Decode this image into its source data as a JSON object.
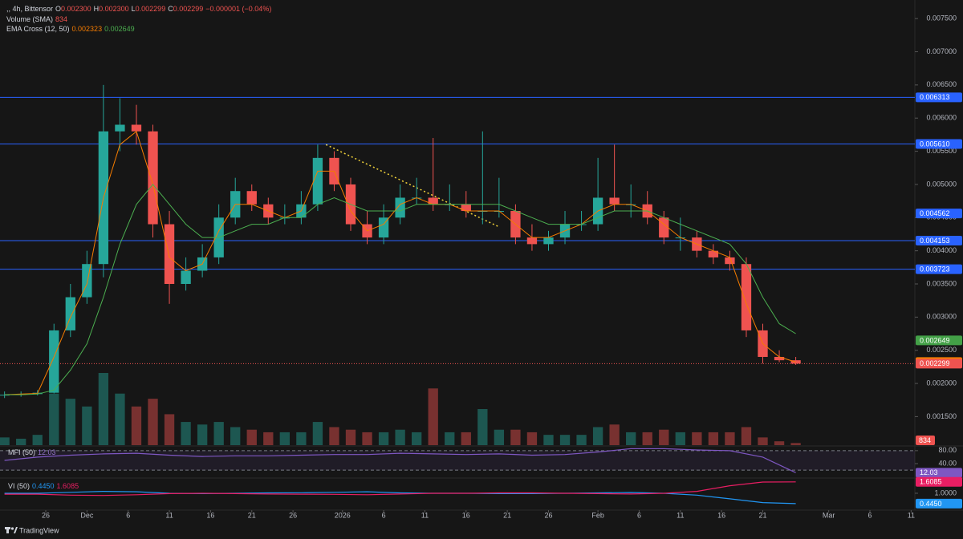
{
  "header": {
    "symbol": ",, 4h, Bittensor",
    "ohlc": [
      {
        "key": "O",
        "value": "0.002300"
      },
      {
        "key": "H",
        "value": "0.002300"
      },
      {
        "key": "L",
        "value": "0.002299"
      },
      {
        "key": "C",
        "value": "0.002299"
      }
    ],
    "change": "−0.000001 (−0.04%)"
  },
  "footer": {
    "brand": "TradingView"
  },
  "chart_data": [
    {
      "type": "candlestick",
      "x": [
        -5,
        -3,
        -1,
        1,
        3,
        5,
        7,
        9,
        11,
        13,
        15,
        17,
        19,
        21,
        23,
        25,
        27,
        29,
        31,
        33,
        35,
        37,
        39,
        41,
        43,
        45,
        47,
        49,
        51,
        53,
        55,
        57,
        59,
        61,
        63,
        65,
        67,
        69,
        71,
        73,
        75,
        77,
        79,
        81,
        83,
        85,
        87,
        89,
        91
      ],
      "open": [
        0.00182,
        0.00183,
        0.00184,
        0.00186,
        0.0028,
        0.0033,
        0.0038,
        0.0058,
        0.0059,
        0.0058,
        0.0044,
        0.0035,
        0.0037,
        0.0039,
        0.0045,
        0.0049,
        0.0047,
        0.0045,
        0.0045,
        0.0047,
        0.0054,
        0.005,
        0.0044,
        0.0042,
        0.0045,
        0.0048,
        0.0048,
        0.0047,
        0.0047,
        0.0046,
        0.0046,
        0.0046,
        0.0042,
        0.0041,
        0.0042,
        0.0044,
        0.0044,
        0.0048,
        0.0047,
        0.0047,
        0.0045,
        0.0042,
        0.0042,
        0.004,
        0.0039,
        0.0038,
        0.0028,
        0.0024,
        0.00235
      ],
      "high": [
        0.00188,
        0.00188,
        0.0019,
        0.0029,
        0.0035,
        0.004,
        0.0065,
        0.0063,
        0.0062,
        0.0059,
        0.0046,
        0.0039,
        0.0041,
        0.0047,
        0.0051,
        0.005,
        0.0048,
        0.0047,
        0.0049,
        0.0056,
        0.0055,
        0.0051,
        0.0046,
        0.0047,
        0.005,
        0.0051,
        0.0057,
        0.005,
        0.0049,
        0.0058,
        0.0051,
        0.0047,
        0.0044,
        0.0043,
        0.0046,
        0.0046,
        0.0054,
        0.0056,
        0.005,
        0.0049,
        0.0046,
        0.0045,
        0.0043,
        0.0041,
        0.004,
        0.0039,
        0.0029,
        0.0025,
        0.0024
      ],
      "low": [
        0.00178,
        0.0018,
        0.00182,
        0.00185,
        0.0027,
        0.0032,
        0.0036,
        0.0055,
        0.0056,
        0.0042,
        0.0032,
        0.0034,
        0.0036,
        0.0038,
        0.0044,
        0.0046,
        0.0044,
        0.0044,
        0.0044,
        0.0046,
        0.0049,
        0.0043,
        0.0041,
        0.0041,
        0.0044,
        0.0047,
        0.0046,
        0.0046,
        0.0045,
        0.0044,
        0.0045,
        0.0041,
        0.004,
        0.004,
        0.0041,
        0.0043,
        0.0043,
        0.0046,
        0.0045,
        0.0044,
        0.0041,
        0.004,
        0.0039,
        0.0038,
        0.0037,
        0.0027,
        0.0023,
        0.00232,
        0.00228
      ],
      "close": [
        0.00183,
        0.00184,
        0.00186,
        0.0028,
        0.0033,
        0.0038,
        0.0058,
        0.0059,
        0.0058,
        0.0044,
        0.0035,
        0.0037,
        0.0039,
        0.0045,
        0.0049,
        0.0047,
        0.0045,
        0.0045,
        0.0047,
        0.0054,
        0.005,
        0.0044,
        0.0042,
        0.0045,
        0.0048,
        0.0048,
        0.0047,
        0.0047,
        0.0046,
        0.0046,
        0.0046,
        0.0042,
        0.0041,
        0.0042,
        0.0044,
        0.0044,
        0.0048,
        0.0047,
        0.0047,
        0.0045,
        0.0042,
        0.0042,
        0.004,
        0.0039,
        0.0038,
        0.0028,
        0.0024,
        0.00235,
        0.002299
      ],
      "colors": {
        "up": "#26a69a",
        "down": "#ef5350"
      },
      "series": [
        {
          "color": "#f57c00",
          "values": [
            0.00183,
            0.00184,
            0.00185,
            0.0024,
            0.003,
            0.0035,
            0.0048,
            0.0056,
            0.0058,
            0.005,
            0.0039,
            0.0037,
            0.0038,
            0.0043,
            0.0047,
            0.0047,
            0.0046,
            0.0045,
            0.0046,
            0.0052,
            0.0052,
            0.0046,
            0.0043,
            0.0044,
            0.0047,
            0.0048,
            0.0047,
            0.0047,
            0.0046,
            0.0046,
            0.0046,
            0.0044,
            0.0042,
            0.0042,
            0.0043,
            0.0044,
            0.0046,
            0.0047,
            0.0047,
            0.0046,
            0.0044,
            0.0042,
            0.0041,
            0.004,
            0.0039,
            0.0032,
            0.0026,
            0.0024,
            0.002323
          ]
        },
        {
          "color": "#4caf50",
          "values": [
            0.00183,
            0.00183,
            0.00184,
            0.0019,
            0.0022,
            0.0026,
            0.0033,
            0.0041,
            0.0047,
            0.005,
            0.0047,
            0.0044,
            0.0042,
            0.0042,
            0.0043,
            0.0044,
            0.0044,
            0.0045,
            0.0045,
            0.0047,
            0.0048,
            0.0047,
            0.0046,
            0.0046,
            0.0046,
            0.0047,
            0.0047,
            0.0047,
            0.0047,
            0.0047,
            0.0047,
            0.0046,
            0.0045,
            0.0044,
            0.0044,
            0.0044,
            0.0045,
            0.0046,
            0.0046,
            0.0046,
            0.0045,
            0.0044,
            0.0043,
            0.0042,
            0.0041,
            0.0038,
            0.0033,
            0.0029,
            0.00275
          ]
        }
      ],
      "ema_legend": {
        "name": "EMA Cross (12, 50)"
      },
      "volume": {
        "name": "Volume (SMA)",
        "last_label": "834",
        "values": [
          3000,
          2500,
          4000,
          20000,
          18000,
          15000,
          28000,
          20000,
          15000,
          18000,
          12000,
          9000,
          8000,
          9000,
          7000,
          6000,
          5000,
          5000,
          5000,
          9000,
          7000,
          6000,
          5000,
          5000,
          6000,
          5000,
          22000,
          5000,
          5000,
          14000,
          6000,
          6000,
          5000,
          4000,
          4000,
          4000,
          7000,
          8000,
          5000,
          5000,
          6000,
          5000,
          5000,
          5000,
          5000,
          7000,
          3000,
          1500,
          834
        ]
      },
      "levels": [
        {
          "value": 0.006313,
          "label": "0.006313"
        },
        {
          "value": 0.00561,
          "label": "0.005610"
        },
        {
          "value": 0.004153,
          "label": "0.004153"
        },
        {
          "value": 0.003723,
          "label": "0.003723"
        }
      ],
      "level_color": "#2962ff",
      "price_labels": [
        {
          "value": 0.004562,
          "label": "0.004562",
          "color": "#2962ff"
        },
        {
          "value": 0.002649,
          "label": "0.002649",
          "color": "#43a047"
        },
        {
          "value": 0.002323,
          "label": "0.002323",
          "color": "#f57c00"
        }
      ],
      "last_price": {
        "value": 0.002299,
        "label": "0.002299",
        "color": "#ef5350"
      },
      "trendline": {
        "x": [
          34,
          55
        ],
        "y": [
          0.0056,
          0.00436
        ],
        "color": "#f2d33a"
      },
      "xlim": [
        -5.55,
        105.45
      ],
      "ylim": [
        0.00107,
        0.00778
      ],
      "yticks": [
        {
          "value": 0.0075,
          "label": "0.007500"
        },
        {
          "value": 0.007,
          "label": "0.007000"
        },
        {
          "value": 0.0065,
          "label": "0.006500"
        },
        {
          "value": 0.006,
          "label": "0.006000"
        },
        {
          "value": 0.0055,
          "label": "0.005500"
        },
        {
          "value": 0.005,
          "label": "0.005000"
        },
        {
          "value": 0.0045,
          "label": "0.004500"
        },
        {
          "value": 0.004,
          "label": "0.004000"
        },
        {
          "value": 0.0035,
          "label": "0.003500"
        },
        {
          "value": 0.003,
          "label": "0.003000"
        },
        {
          "value": 0.0025,
          "label": "0.002500"
        },
        {
          "value": 0.002,
          "label": "0.002000"
        },
        {
          "value": 0.0015,
          "label": "0.001500"
        }
      ],
      "xticks": [
        {
          "value": 0,
          "label": "26"
        },
        {
          "value": 5,
          "label": "Dec"
        },
        {
          "value": 10,
          "label": "6"
        },
        {
          "value": 15,
          "label": "11"
        },
        {
          "value": 20,
          "label": "16"
        },
        {
          "value": 25,
          "label": "21"
        },
        {
          "value": 30,
          "label": "26"
        },
        {
          "value": 36,
          "label": "2026"
        },
        {
          "value": 41,
          "label": "6"
        },
        {
          "value": 46,
          "label": "11"
        },
        {
          "value": 51,
          "label": "16"
        },
        {
          "value": 56,
          "label": "21"
        },
        {
          "value": 61,
          "label": "26"
        },
        {
          "value": 67,
          "label": "Feb"
        },
        {
          "value": 72,
          "label": "6"
        },
        {
          "value": 77,
          "label": "11"
        },
        {
          "value": 82,
          "label": "16"
        },
        {
          "value": 87,
          "label": "21"
        },
        {
          "value": 95,
          "label": "Mar"
        },
        {
          "value": 100,
          "label": "6"
        },
        {
          "value": 105,
          "label": "11"
        }
      ]
    },
    {
      "type": "line",
      "title": "MFI (50)",
      "last_label": "12.03",
      "x": [
        -5,
        -1,
        3,
        7,
        11,
        15,
        19,
        23,
        27,
        31,
        35,
        39,
        43,
        47,
        51,
        55,
        59,
        63,
        67,
        71,
        75,
        79,
        83,
        87,
        91
      ],
      "series": [
        {
          "color": "#7e57c2",
          "values": [
            50,
            60,
            66,
            70,
            72,
            66,
            62,
            64,
            64,
            66,
            68,
            68,
            72,
            70,
            68,
            70,
            66,
            68,
            76,
            86,
            86,
            82,
            80,
            60,
            12.03
          ]
        }
      ],
      "bands": [
        80,
        20
      ],
      "band_color": "#7e57c2",
      "xlim": [
        -5.55,
        105.45
      ],
      "ylim": [
        -2,
        92
      ],
      "yticks": [
        {
          "value": 80,
          "label": "80.00"
        },
        {
          "value": 40,
          "label": "40.00"
        }
      ]
    },
    {
      "type": "line",
      "title": "VI (50)",
      "x": [
        -5,
        -1,
        3,
        7,
        11,
        15,
        19,
        23,
        27,
        31,
        35,
        39,
        43,
        47,
        51,
        55,
        59,
        63,
        67,
        71,
        75,
        79,
        83,
        87,
        91
      ],
      "series": [
        {
          "color": "#2196f3",
          "last_label": "0.4450",
          "values": [
            1.0,
            1.0,
            1.05,
            1.1,
            1.08,
            1.0,
            0.98,
            1.0,
            1.02,
            1.03,
            1.05,
            1.08,
            1.02,
            1.0,
            1.0,
            0.98,
            0.98,
            1.0,
            1.02,
            1.04,
            1.0,
            0.9,
            0.7,
            0.5,
            0.445
          ]
        },
        {
          "color": "#e91e63",
          "last_label": "1.6085",
          "values": [
            0.95,
            0.95,
            0.9,
            0.88,
            0.92,
            0.98,
            1.0,
            0.98,
            0.96,
            0.95,
            0.94,
            0.92,
            0.96,
            1.0,
            1.0,
            1.02,
            1.02,
            1.0,
            0.98,
            0.96,
            1.0,
            1.1,
            1.4,
            1.6,
            1.6085
          ]
        }
      ],
      "xlim": [
        -5.55,
        105.45
      ],
      "ylim": [
        0.14,
        1.77
      ],
      "yticks": [
        {
          "value": 1,
          "label": "1.0000"
        }
      ]
    }
  ]
}
